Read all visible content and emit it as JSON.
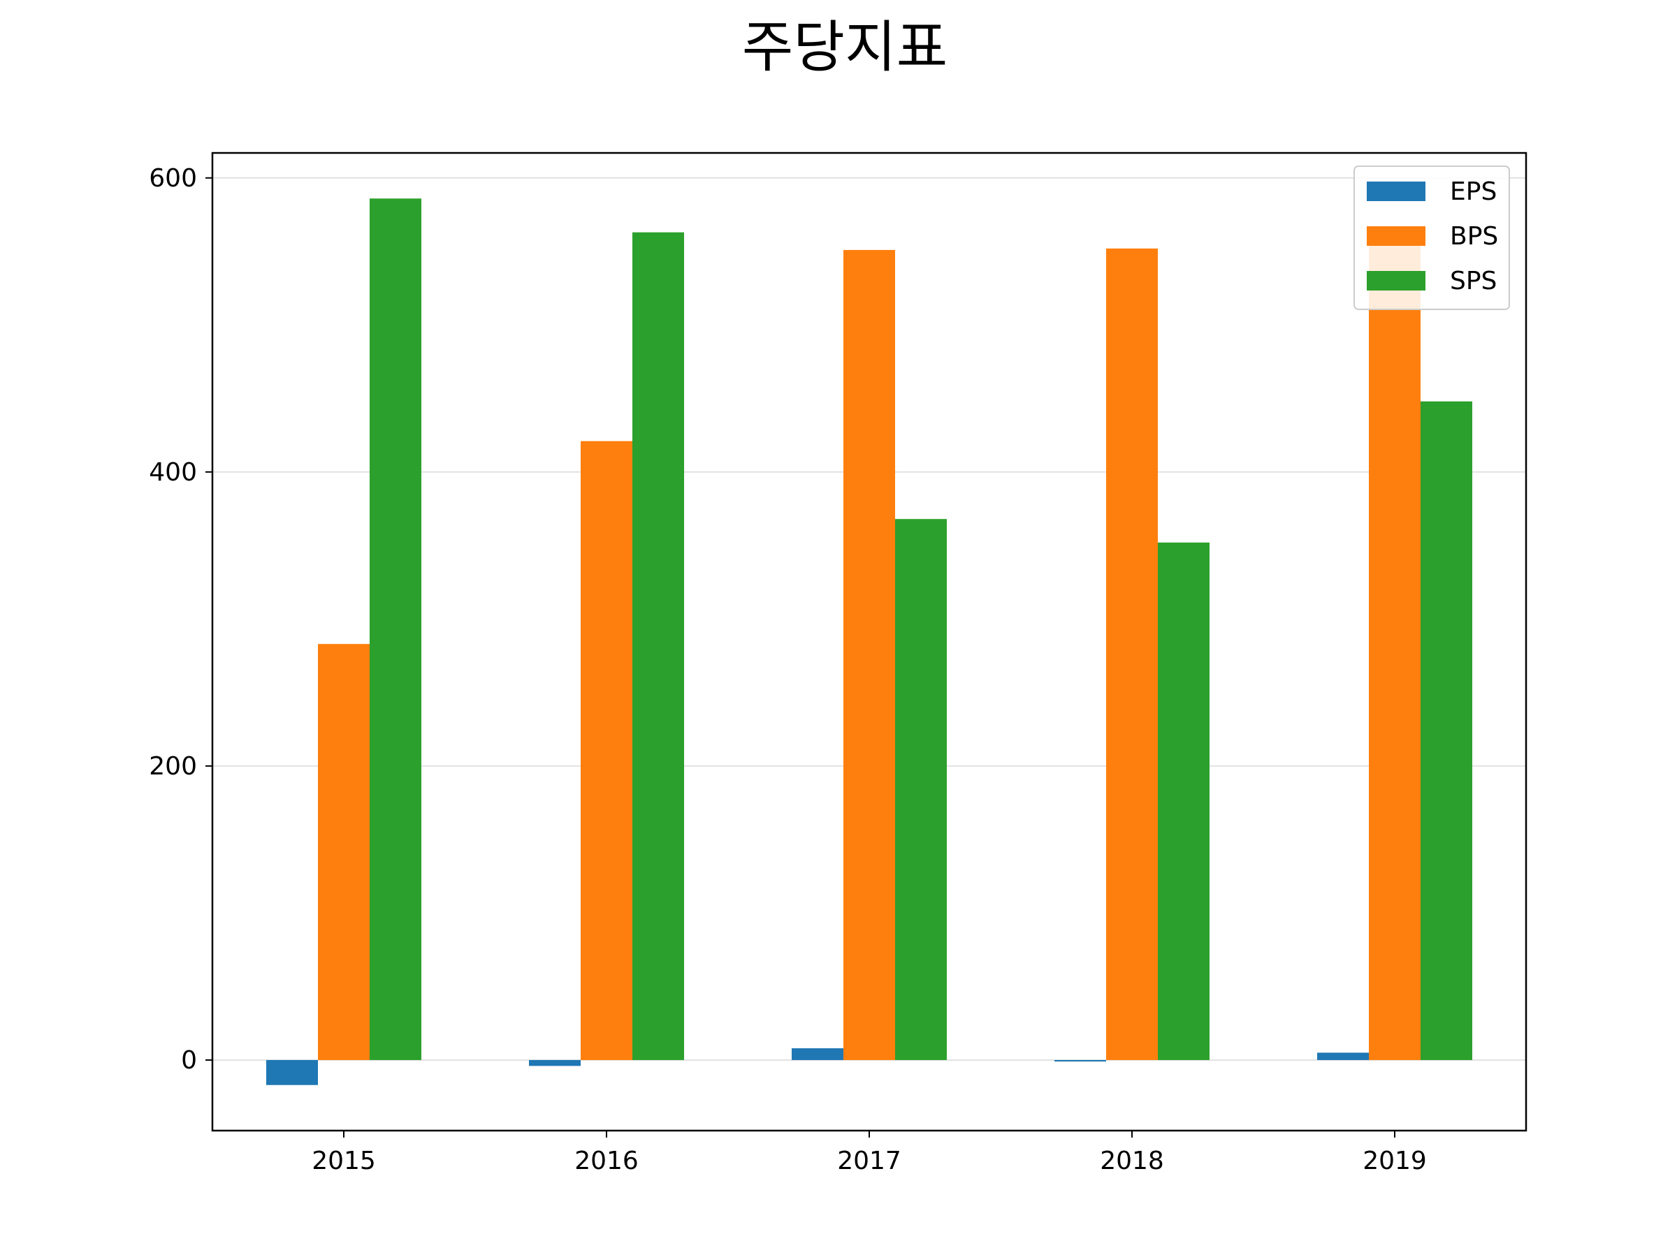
{
  "chart_data": {
    "type": "bar",
    "title": "주당지표",
    "xlabel": "",
    "ylabel": "",
    "categories": [
      "2015",
      "2016",
      "2017",
      "2018",
      "2019"
    ],
    "series": [
      {
        "name": "EPS",
        "color": "#1f77b4",
        "values": [
          -17,
          -4,
          8,
          -1,
          5
        ]
      },
      {
        "name": "BPS",
        "color": "#ff7f0e",
        "values": [
          283,
          421,
          551,
          552,
          554
        ]
      },
      {
        "name": "SPS",
        "color": "#2ca02c",
        "values": [
          586,
          563,
          null,
          352,
          448
        ]
      }
    ],
    "sps_2017": 368,
    "ylim": [
      -48,
      617
    ],
    "yticks": [
      "0",
      "200",
      "400",
      "600"
    ],
    "ytick_values": [
      0,
      200,
      400,
      600
    ],
    "grid": "horizontal",
    "legend_position": "top-right"
  }
}
